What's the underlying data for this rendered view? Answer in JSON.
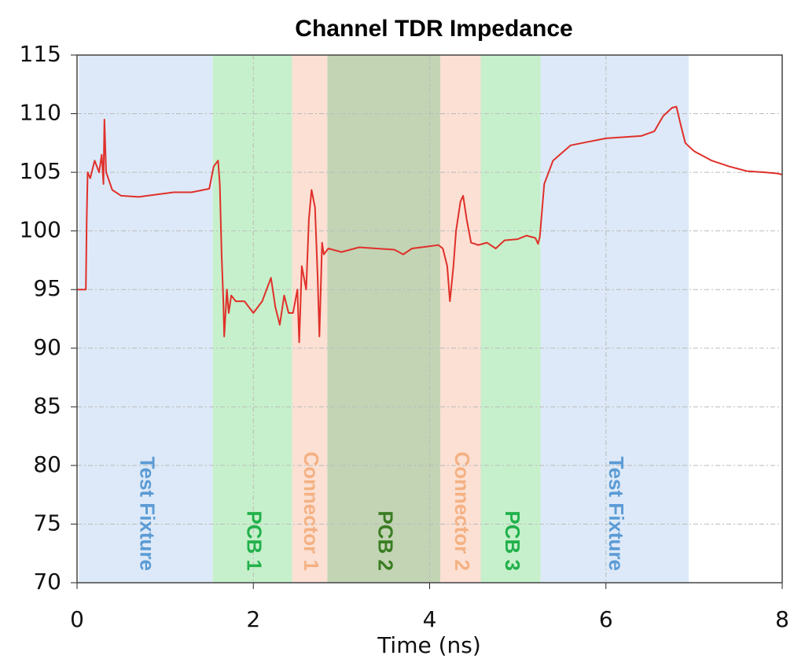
{
  "chart_data": {
    "type": "line",
    "title": "Channel TDR Impedance",
    "x_label": "Time (ns)",
    "xlim": [
      0,
      8
    ],
    "ylim": [
      70,
      115
    ],
    "xticks": [
      0,
      2,
      4,
      6,
      8
    ],
    "yticks": [
      70,
      75,
      80,
      85,
      90,
      95,
      100,
      105,
      110,
      115
    ],
    "grid": true,
    "regions": [
      {
        "name": "Test Fixture",
        "start": 0.02,
        "end": 1.54,
        "color": "#dde9f8",
        "label_color": "#5b9bd5"
      },
      {
        "name": "PCB 1",
        "start": 1.54,
        "end": 2.44,
        "color": "#c6f0cb",
        "label_color": "#22b14c"
      },
      {
        "name": "Connector 1",
        "start": 2.44,
        "end": 2.84,
        "color": "#fbe0d3",
        "label_color": "#f4b183"
      },
      {
        "name": "PCB 2",
        "start": 2.84,
        "end": 4.12,
        "color": "#c2d4b4",
        "label_color": "#3a7d22"
      },
      {
        "name": "Connector 2",
        "start": 4.12,
        "end": 4.58,
        "color": "#fbe0d3",
        "label_color": "#f4b183"
      },
      {
        "name": "PCB 3",
        "start": 4.58,
        "end": 5.26,
        "color": "#c6f0cb",
        "label_color": "#22b14c"
      },
      {
        "name": "Test Fixture",
        "start": 5.26,
        "end": 6.94,
        "color": "#dde9f8",
        "label_color": "#5b9bd5"
      }
    ],
    "x": [
      0,
      0.1,
      0.11,
      0.12,
      0.15,
      0.2,
      0.25,
      0.28,
      0.3,
      0.31,
      0.33,
      0.4,
      0.5,
      0.7,
      0.9,
      1.1,
      1.3,
      1.5,
      1.55,
      1.6,
      1.62,
      1.64,
      1.66,
      1.67,
      1.7,
      1.72,
      1.75,
      1.8,
      1.9,
      2.0,
      2.1,
      2.2,
      2.25,
      2.3,
      2.35,
      2.4,
      2.45,
      2.5,
      2.52,
      2.55,
      2.6,
      2.63,
      2.66,
      2.7,
      2.73,
      2.75,
      2.78,
      2.8,
      2.85,
      3.0,
      3.2,
      3.4,
      3.6,
      3.7,
      3.8,
      4.0,
      4.1,
      4.15,
      4.2,
      4.23,
      4.27,
      4.3,
      4.35,
      4.38,
      4.42,
      4.47,
      4.55,
      4.65,
      4.75,
      4.85,
      5.0,
      5.1,
      5.2,
      5.23,
      5.25,
      5.3,
      5.4,
      5.6,
      5.8,
      6.0,
      6.2,
      6.4,
      6.55,
      6.65,
      6.75,
      6.8,
      6.85,
      6.9,
      7.0,
      7.2,
      7.4,
      7.6,
      7.8,
      7.95,
      8.0
    ],
    "series": [
      {
        "color": "#e0302a",
        "values": [
          95,
          95,
          101,
          105,
          104.5,
          106,
          105,
          106.5,
          104,
          109.5,
          105,
          103.5,
          103,
          102.9,
          103.1,
          103.3,
          103.3,
          103.6,
          105.5,
          106,
          104,
          98,
          94,
          91,
          95,
          93,
          94.5,
          94,
          94,
          93,
          94,
          96,
          93.5,
          92,
          94.5,
          93,
          93,
          95,
          90.5,
          97,
          95,
          101,
          103.5,
          102,
          96,
          91,
          99,
          98,
          98.5,
          98.2,
          98.6,
          98.5,
          98.4,
          98,
          98.5,
          98.7,
          98.8,
          98.5,
          97,
          94,
          97,
          100,
          102.5,
          103,
          101,
          99,
          98.8,
          99,
          98.5,
          99.2,
          99.3,
          99.6,
          99.4,
          98.9,
          99.5,
          104,
          106,
          107.3,
          107.6,
          107.9,
          108,
          108.1,
          108.5,
          109.8,
          110.5,
          110.6,
          109,
          107.5,
          106.8,
          106,
          105.5,
          105.1,
          105,
          104.9,
          104.8
        ]
      }
    ]
  }
}
